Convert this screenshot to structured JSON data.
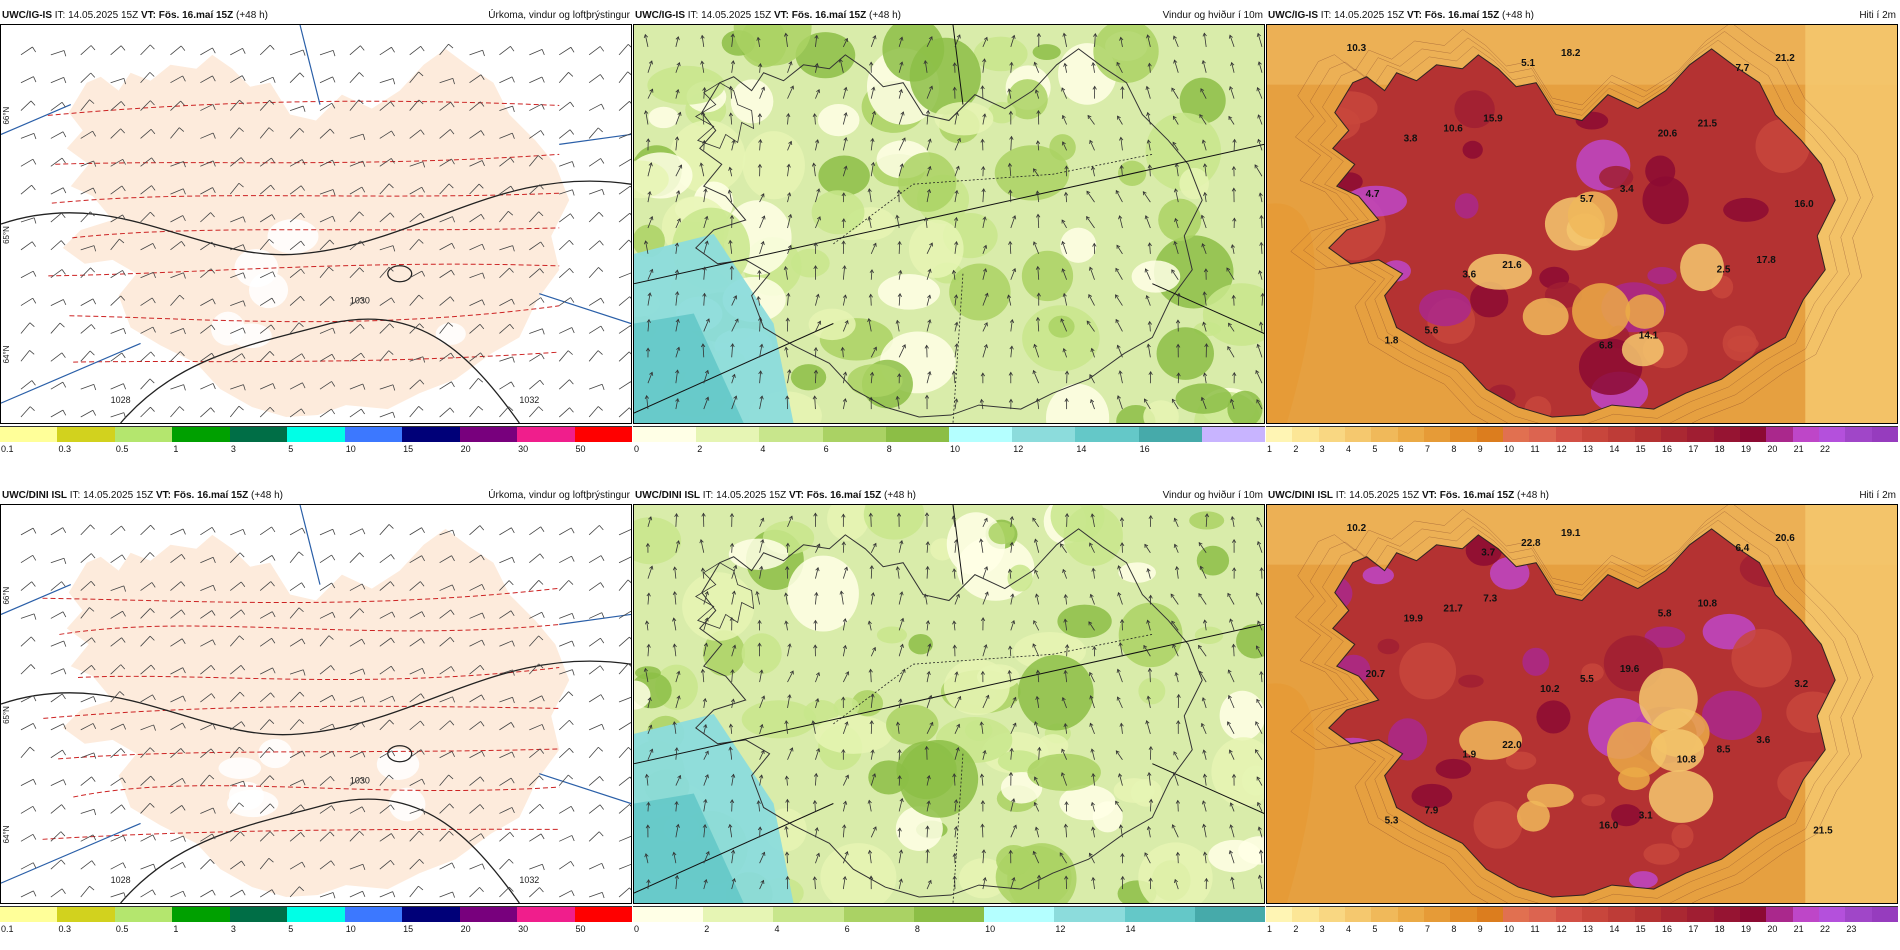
{
  "rows": [
    {
      "panels": [
        {
          "model": "UWC/IG-IS",
          "it": "IT: 14.05.2025 15Z",
          "vt_prefix": "VT:",
          "vt": "Fös. 16.maí 15Z",
          "lead": "(+48 h)",
          "title": "Úrkoma, vindur og loftþrýstingur",
          "type": "precip",
          "colors": [
            "#ffff99",
            "#d2d21e",
            "#b4e66e",
            "#00a000",
            "#006e46",
            "#00ffe6",
            "#3c78ff",
            "#000078",
            "#78007d",
            "#f01e8c",
            "#ff0000"
          ],
          "ticks": [
            "0.1",
            "0.3",
            "0.5",
            "1",
            "3",
            "5",
            "10",
            "15",
            "20",
            "30",
            "50"
          ],
          "contours": [
            "1030",
            "1032",
            "1028"
          ],
          "side": [
            "66°N",
            "65°N",
            "64°N"
          ],
          "labels": []
        },
        {
          "model": "UWC/IG-IS",
          "it": "IT: 14.05.2025 15Z",
          "vt_prefix": "VT:",
          "vt": "Fös. 16.maí 15Z",
          "lead": "(+48 h)",
          "title": "Vindur og hviður í 10m",
          "type": "wind",
          "colors": [
            "#ffffe6",
            "#e6f5b4",
            "#c8e68c",
            "#aad264",
            "#8cbe46",
            "#b4ffff",
            "#8cdcdc",
            "#64c8c8",
            "#46aaaa",
            "#c8b4ff"
          ],
          "ticks": [
            "0",
            "2",
            "4",
            "6",
            "8",
            "10",
            "12",
            "14",
            "16"
          ],
          "labels": []
        },
        {
          "model": "UWC/IG-IS",
          "it": "IT: 14.05.2025 15Z",
          "vt_prefix": "VT:",
          "vt": "Fös. 16.maí 15Z",
          "lead": "(+48 h)",
          "title": "Hiti í 2m",
          "type": "temp",
          "colors": [
            "#fff5b4",
            "#fce696",
            "#f9d782",
            "#f5c86e",
            "#f0b95a",
            "#ebaa46",
            "#e69b37",
            "#e18c28",
            "#dc7d1e",
            "#e17050",
            "#dc6450",
            "#d25046",
            "#c8463c",
            "#be3c37",
            "#b43232",
            "#aa2832",
            "#a01e32",
            "#961432",
            "#8c0a32",
            "#aa288c",
            "#be46c8",
            "#b450dc",
            "#a046c8",
            "#963cbe"
          ],
          "ticks": [
            "1",
            "2",
            "3",
            "4",
            "5",
            "6",
            "7",
            "8",
            "9",
            "10",
            "11",
            "12",
            "13",
            "14",
            "15",
            "16",
            "17",
            "18",
            "19",
            "20",
            "21",
            "22"
          ],
          "labels": [
            "10.3",
            "15.9",
            "3.4",
            "17.8",
            "5.6",
            "18.2",
            "21.5",
            "4.7",
            "21.6",
            "14.1",
            "21.2",
            "10.6",
            "5.7",
            "2.5",
            "1.8",
            "5.1",
            "20.6",
            "16.0",
            "3.6",
            "6.8",
            "7.7",
            "3.8"
          ]
        }
      ]
    },
    {
      "panels": [
        {
          "model": "UWC/DINI ISL",
          "it": "IT: 14.05.2025 15Z",
          "vt_prefix": "VT:",
          "vt": "Fös. 16.maí 15Z",
          "lead": "(+48 h)",
          "title": "Úrkoma, vindur og loftþrýstingur",
          "type": "precip",
          "colors": [
            "#ffff99",
            "#d2d21e",
            "#b4e66e",
            "#00a000",
            "#006e46",
            "#00ffe6",
            "#3c78ff",
            "#000078",
            "#78007d",
            "#f01e8c",
            "#ff0000"
          ],
          "ticks": [
            "0.1",
            "0.3",
            "0.5",
            "1",
            "3",
            "5",
            "10",
            "15",
            "20",
            "30",
            "50"
          ],
          "contours": [
            "1030",
            "1032",
            "1028"
          ],
          "side": [
            "66°N",
            "65°N",
            "64°N"
          ],
          "labels": []
        },
        {
          "model": "UWC/DINI ISL",
          "it": "IT: 14.05.2025 15Z",
          "vt_prefix": "VT:",
          "vt": "Fös. 16.maí 15Z",
          "lead": "(+48 h)",
          "title": "Vindur og hviður í 10m",
          "type": "wind",
          "colors": [
            "#ffffe6",
            "#e6f5b4",
            "#c8e68c",
            "#aad264",
            "#8cbe46",
            "#b4ffff",
            "#8cdcdc",
            "#64c8c8",
            "#46aaaa"
          ],
          "ticks": [
            "0",
            "2",
            "4",
            "6",
            "8",
            "10",
            "12",
            "14"
          ],
          "labels": []
        },
        {
          "model": "UWC/DINI ISL",
          "it": "IT: 14.05.2025 15Z",
          "vt_prefix": "VT:",
          "vt": "Fös. 16.maí 15Z",
          "lead": "(+48 h)",
          "title": "Hiti í 2m",
          "type": "temp",
          "colors": [
            "#fff5b4",
            "#fce696",
            "#f9d782",
            "#f5c86e",
            "#f0b95a",
            "#ebaa46",
            "#e69b37",
            "#e18c28",
            "#dc7d1e",
            "#e17050",
            "#dc6450",
            "#d25046",
            "#c8463c",
            "#be3c37",
            "#b43232",
            "#aa2832",
            "#a01e32",
            "#961432",
            "#8c0a32",
            "#aa288c",
            "#be46c8",
            "#b450dc",
            "#a046c8",
            "#963cbe"
          ],
          "ticks": [
            "1",
            "2",
            "3",
            "4",
            "5",
            "6",
            "7",
            "8",
            "9",
            "10",
            "11",
            "12",
            "13",
            "14",
            "15",
            "16",
            "17",
            "18",
            "19",
            "20",
            "21",
            "22",
            "23"
          ],
          "labels": [
            "10.2",
            "7.3",
            "19.6",
            "3.6",
            "7.9",
            "19.1",
            "10.8",
            "20.7",
            "22.0",
            "3.1",
            "20.6",
            "21.7",
            "5.5",
            "8.5",
            "5.3",
            "22.8",
            "5.8",
            "3.2",
            "1.9",
            "16.0",
            "6.4",
            "19.9",
            "10.2",
            "10.8",
            "21.5",
            "3.7"
          ]
        }
      ]
    }
  ]
}
